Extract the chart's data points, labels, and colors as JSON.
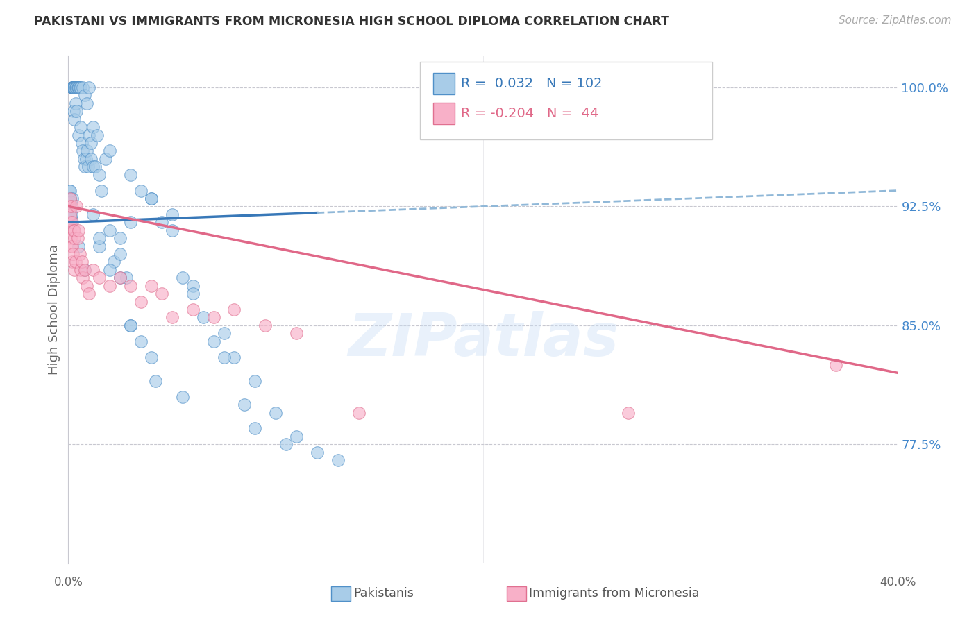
{
  "title": "PAKISTANI VS IMMIGRANTS FROM MICRONESIA HIGH SCHOOL DIPLOMA CORRELATION CHART",
  "source": "Source: ZipAtlas.com",
  "ylabel": "High School Diploma",
  "right_ytick_vals": [
    77.5,
    85.0,
    92.5,
    100.0
  ],
  "right_ytick_labels": [
    "77.5%",
    "85.0%",
    "92.5%",
    "100.0%"
  ],
  "blue_r": "0.032",
  "blue_n": "102",
  "pink_r": "-0.204",
  "pink_n": "44",
  "blue_fill": "#a8cce8",
  "blue_edge": "#5090c8",
  "pink_fill": "#f8b0c8",
  "pink_edge": "#e07090",
  "trend_blue_solid": "#3878b8",
  "trend_blue_dash": "#90b8d8",
  "trend_pink": "#e06888",
  "watermark": "ZIPatlas",
  "xlim": [
    0.0,
    40.0
  ],
  "ylim": [
    70.0,
    102.0
  ],
  "blue_trend_x0": 0.0,
  "blue_trend_y0": 91.5,
  "blue_trend_x1": 40.0,
  "blue_trend_y1": 93.5,
  "pink_trend_x0": 0.0,
  "pink_trend_y0": 92.5,
  "pink_trend_x1": 40.0,
  "pink_trend_y1": 82.0,
  "blue_solid_end": 12.0,
  "pakistanis_x": [
    0.05,
    0.05,
    0.05,
    0.05,
    0.08,
    0.08,
    0.1,
    0.1,
    0.1,
    0.1,
    0.12,
    0.12,
    0.15,
    0.15,
    0.18,
    0.2,
    0.2,
    0.2,
    0.2,
    0.22,
    0.25,
    0.25,
    0.25,
    0.3,
    0.3,
    0.3,
    0.35,
    0.35,
    0.4,
    0.4,
    0.4,
    0.45,
    0.5,
    0.5,
    0.5,
    0.55,
    0.6,
    0.6,
    0.65,
    0.7,
    0.7,
    0.75,
    0.8,
    0.8,
    0.85,
    0.9,
    0.9,
    0.95,
    1.0,
    1.0,
    1.1,
    1.1,
    1.2,
    1.2,
    1.3,
    1.4,
    1.5,
    1.6,
    1.8,
    2.0,
    2.2,
    2.5,
    2.8,
    3.0,
    3.5,
    4.0,
    4.5,
    5.5,
    6.5,
    7.5,
    8.0,
    9.0,
    10.0,
    11.0,
    13.0,
    1.2,
    1.5,
    2.0,
    2.5,
    3.0,
    3.5,
    4.2,
    5.0,
    6.0,
    7.0,
    2.0,
    3.0,
    4.0,
    5.0,
    6.0,
    7.5,
    8.5,
    9.0,
    10.5,
    12.0,
    0.5,
    0.8,
    1.5,
    2.5,
    3.0,
    4.0,
    5.5
  ],
  "pakistanis_y": [
    91.5,
    92.5,
    93.0,
    93.5,
    92.0,
    93.0,
    91.5,
    92.5,
    93.0,
    93.5,
    91.8,
    92.8,
    91.5,
    92.0,
    93.0,
    100.0,
    100.0,
    100.0,
    100.0,
    100.0,
    100.0,
    100.0,
    98.5,
    100.0,
    100.0,
    98.0,
    100.0,
    99.0,
    100.0,
    100.0,
    98.5,
    100.0,
    100.0,
    100.0,
    97.0,
    100.0,
    100.0,
    97.5,
    96.5,
    100.0,
    96.0,
    95.5,
    99.5,
    95.0,
    95.5,
    99.0,
    96.0,
    95.0,
    100.0,
    97.0,
    95.5,
    96.5,
    95.0,
    97.5,
    95.0,
    97.0,
    94.5,
    93.5,
    95.5,
    91.0,
    89.0,
    90.5,
    88.0,
    91.5,
    93.5,
    93.0,
    91.5,
    88.0,
    85.5,
    84.5,
    83.0,
    81.5,
    79.5,
    78.0,
    76.5,
    92.0,
    90.0,
    88.5,
    88.0,
    85.0,
    84.0,
    81.5,
    92.0,
    87.5,
    84.0,
    96.0,
    94.5,
    93.0,
    91.0,
    87.0,
    83.0,
    80.0,
    78.5,
    77.5,
    77.0,
    90.0,
    88.5,
    90.5,
    89.5,
    85.0,
    83.0,
    80.5
  ],
  "micronesia_x": [
    0.05,
    0.07,
    0.08,
    0.1,
    0.1,
    0.12,
    0.15,
    0.15,
    0.18,
    0.2,
    0.2,
    0.22,
    0.25,
    0.28,
    0.3,
    0.3,
    0.35,
    0.4,
    0.45,
    0.5,
    0.55,
    0.6,
    0.65,
    0.7,
    0.8,
    0.9,
    1.0,
    1.2,
    1.5,
    2.0,
    2.5,
    3.0,
    3.5,
    4.0,
    4.5,
    5.0,
    6.0,
    7.0,
    8.0,
    9.5,
    11.0,
    14.0,
    27.0,
    37.0
  ],
  "micronesia_y": [
    92.5,
    93.0,
    91.5,
    92.0,
    91.0,
    90.5,
    92.5,
    90.0,
    89.0,
    91.5,
    90.0,
    89.5,
    91.0,
    90.5,
    88.5,
    91.0,
    89.0,
    92.5,
    90.5,
    91.0,
    89.5,
    88.5,
    89.0,
    88.0,
    88.5,
    87.5,
    87.0,
    88.5,
    88.0,
    87.5,
    88.0,
    87.5,
    86.5,
    87.5,
    87.0,
    85.5,
    86.0,
    85.5,
    86.0,
    85.0,
    84.5,
    79.5,
    79.5,
    82.5
  ]
}
